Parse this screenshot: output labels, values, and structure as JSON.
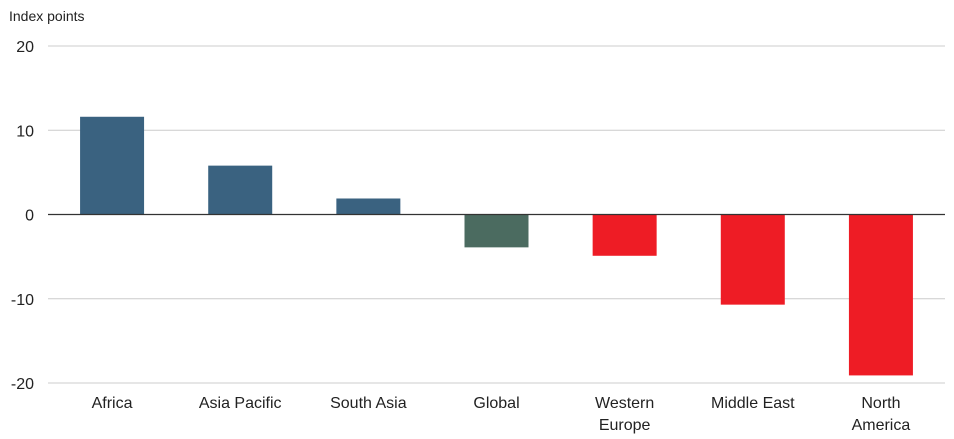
{
  "chart_data": {
    "type": "bar",
    "ylabel": "Index points",
    "categories": [
      "Africa",
      "Asia Pacific",
      "South Asia",
      "Global",
      "Western Europe",
      "Middle East",
      "North America"
    ],
    "category_lines": [
      [
        "Africa"
      ],
      [
        "Asia Pacific"
      ],
      [
        "South Asia"
      ],
      [
        "Global"
      ],
      [
        "Western",
        "Europe"
      ],
      [
        "Middle East"
      ],
      [
        "North",
        "America"
      ]
    ],
    "values": [
      11.6,
      5.8,
      1.9,
      -3.9,
      -4.9,
      -10.7,
      -19.1
    ],
    "bar_colors": [
      "#3a6280",
      "#3a6280",
      "#3a6280",
      "#4b6b60",
      "#ee1c25",
      "#ee1c25",
      "#ee1c25"
    ],
    "ylim": [
      -20,
      20
    ],
    "yticks": [
      20,
      10,
      0,
      -10,
      -20
    ],
    "grid": true
  }
}
